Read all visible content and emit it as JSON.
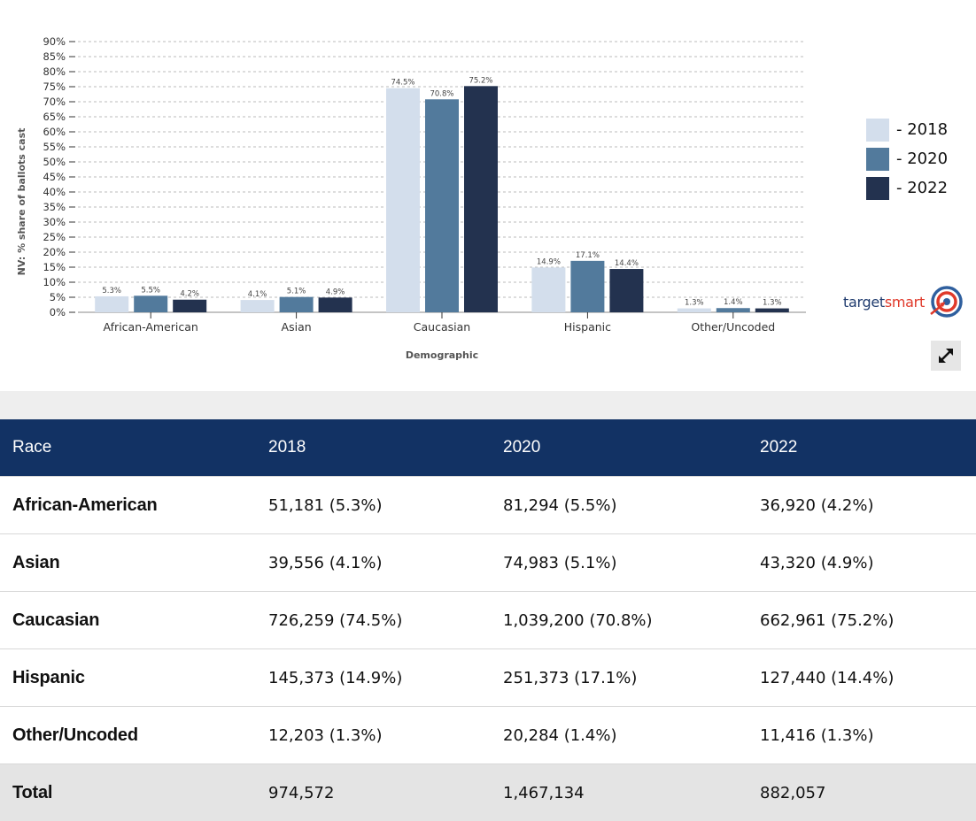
{
  "chart_data": {
    "type": "bar",
    "title": "",
    "xlabel": "Demographic",
    "ylabel": "NV: % share of ballots cast",
    "ylim": [
      0,
      90
    ],
    "yticks": [
      "0%",
      "5%",
      "10%",
      "15%",
      "20%",
      "25%",
      "30%",
      "35%",
      "40%",
      "45%",
      "50%",
      "55%",
      "60%",
      "65%",
      "70%",
      "75%",
      "80%",
      "85%",
      "90%"
    ],
    "categories": [
      "African-American",
      "Asian",
      "Caucasian",
      "Hispanic",
      "Other/Uncoded"
    ],
    "series": [
      {
        "name": "- 2018",
        "color": "#d3deec",
        "values": [
          5.3,
          4.1,
          74.5,
          14.9,
          1.3
        ],
        "labels": [
          "5.3%",
          "4.1%",
          "74.5%",
          "14.9%",
          "1.3%"
        ]
      },
      {
        "name": "- 2020",
        "color": "#527a9c",
        "values": [
          5.5,
          5.1,
          70.8,
          17.1,
          1.4
        ],
        "labels": [
          "5.5%",
          "5.1%",
          "70.8%",
          "17.1%",
          "1.4%"
        ]
      },
      {
        "name": "- 2022",
        "color": "#23324f",
        "values": [
          4.2,
          4.9,
          75.2,
          14.4,
          1.3
        ],
        "labels": [
          "4.2%",
          "4.9%",
          "75.2%",
          "14.4%",
          "1.3%"
        ]
      }
    ],
    "grid": true,
    "legend_position": "right"
  },
  "logo": {
    "part1": "target",
    "part2": "smart",
    "icon": "bullseye-icon"
  },
  "expand_icon": "expand-arrows-icon",
  "table": {
    "headers": [
      "Race",
      "2018",
      "2020",
      "2022"
    ],
    "rows": [
      [
        "African-American",
        "51,181 (5.3%)",
        "81,294 (5.5%)",
        "36,920 (4.2%)"
      ],
      [
        "Asian",
        "39,556 (4.1%)",
        "74,983 (5.1%)",
        "43,320 (4.9%)"
      ],
      [
        "Caucasian",
        "726,259 (74.5%)",
        "1,039,200 (70.8%)",
        "662,961 (75.2%)"
      ],
      [
        "Hispanic",
        "145,373 (14.9%)",
        "251,373 (17.1%)",
        "127,440 (14.4%)"
      ],
      [
        "Other/Uncoded",
        "12,203 (1.3%)",
        "20,284 (1.4%)",
        "11,416 (1.3%)"
      ]
    ],
    "total": [
      "Total",
      "974,572",
      "1,467,134",
      "882,057"
    ]
  }
}
